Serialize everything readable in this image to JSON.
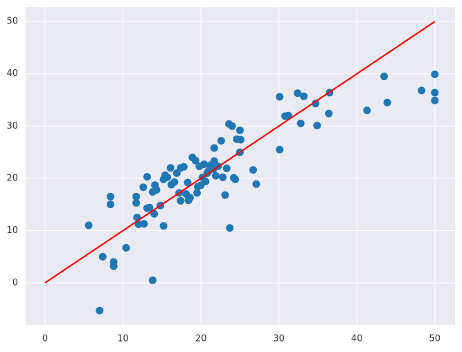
{
  "chart_data": {
    "type": "scatter",
    "grid": true,
    "background": "#eaeaf2",
    "xlim": [
      -2.49,
      52.6
    ],
    "ylim": [
      -8.07,
      52.8
    ],
    "xticks": [
      0,
      10,
      20,
      30,
      40,
      50
    ],
    "yticks": [
      0,
      10,
      20,
      30,
      40,
      50
    ],
    "series": [
      {
        "type": "scatter",
        "color": "#1f77b4",
        "x": [
          5.6,
          7,
          7.4,
          8.4,
          8.4,
          8.8,
          8.8,
          10.4,
          11.7,
          11.7,
          11.8,
          12,
          12.6,
          12.7,
          13.1,
          13.1,
          13.4,
          13.8,
          13.8,
          14,
          14.1,
          14.3,
          14.8,
          15.2,
          15.2,
          15.4,
          15.7,
          16.1,
          16.2,
          16.6,
          16.9,
          17.2,
          17.4,
          17.4,
          17.8,
          18.1,
          18.3,
          18.4,
          18.6,
          18.9,
          19.3,
          19.5,
          19.6,
          19.8,
          20,
          20.2,
          20.4,
          20.6,
          20.8,
          21,
          21.2,
          21.6,
          21.7,
          21.7,
          21.9,
          22.2,
          22.6,
          22.8,
          23.1,
          23.3,
          23.6,
          23.7,
          24,
          24.2,
          24.4,
          24.6,
          25,
          25,
          25.1,
          26.7,
          27.1,
          30.1,
          30.1,
          30.8,
          31.2,
          32.4,
          32.8,
          33.2,
          34.7,
          34.9,
          36.4,
          36.5,
          41.3,
          43.5,
          43.9,
          48.3,
          50,
          50,
          50
        ],
        "values": [
          11,
          -5.3,
          5,
          16.5,
          15,
          4,
          3.2,
          6.7,
          16.5,
          15.3,
          12.5,
          11.2,
          18.3,
          11.3,
          20.3,
          14.3,
          14.4,
          0.5,
          17.4,
          13.2,
          18.7,
          17.8,
          14.8,
          10.9,
          19.8,
          20.6,
          20.2,
          22,
          18.8,
          19.3,
          21,
          17.2,
          15.7,
          22,
          22.2,
          17,
          19.2,
          15.8,
          16.3,
          24,
          23.4,
          17.2,
          18.4,
          22.3,
          18.7,
          20.2,
          22.7,
          19.4,
          21,
          21.4,
          22.5,
          21.8,
          23.3,
          25.8,
          20.5,
          22.3,
          27.2,
          20.2,
          16.8,
          21.9,
          30.4,
          10.5,
          30,
          20.1,
          19.8,
          27.5,
          29.2,
          25,
          27.4,
          21.6,
          18.9,
          35.6,
          25.5,
          31.9,
          32,
          36.3,
          30.5,
          35.7,
          34.3,
          30.1,
          32.4,
          36.4,
          33,
          39.5,
          34.5,
          36.8,
          39.9,
          36.4,
          34.9
        ]
      },
      {
        "type": "line",
        "color": "#ff0000",
        "x": [
          0,
          50
        ],
        "values": [
          0,
          50
        ]
      }
    ]
  }
}
